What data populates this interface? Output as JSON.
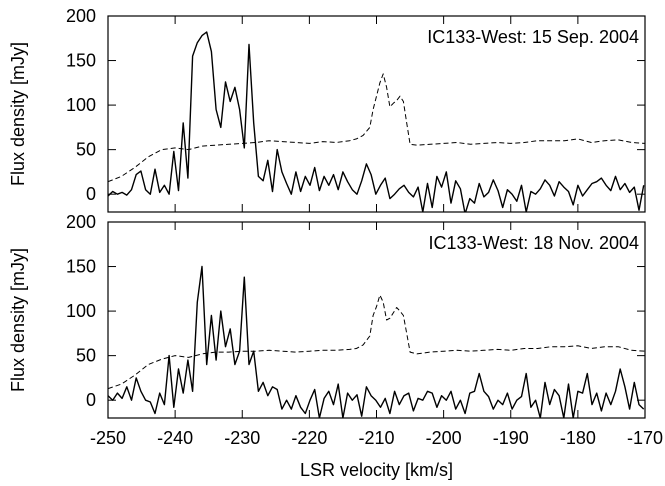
{
  "chart_data": [
    {
      "type": "line",
      "title": "IC133-West: 15 Sep. 2004",
      "ylabel": "Flux density [mJy]",
      "xlabel": "",
      "xlim": [
        -250,
        -170
      ],
      "ylim": [
        -20,
        200
      ],
      "yticks": [
        0,
        50,
        100,
        150,
        200
      ],
      "xticks": [
        -250,
        -240,
        -230,
        -220,
        -210,
        -200,
        -190,
        -180,
        -170
      ],
      "show_x_ticklabels": false,
      "grid": false,
      "series": [
        {
          "style": "solid",
          "x": [
            -250,
            -249.3,
            -248.6,
            -247.9,
            -247.2,
            -246.5,
            -245.8,
            -245.1,
            -244.4,
            -243.7,
            -243.0,
            -242.3,
            -241.6,
            -240.9,
            -240.2,
            -239.5,
            -238.8,
            -238.1,
            -237.4,
            -236.7,
            -236.0,
            -235.3,
            -234.6,
            -233.9,
            -233.2,
            -232.5,
            -231.8,
            -231.1,
            -230.4,
            -229.7,
            -229.0,
            -228.3,
            -227.6,
            -226.9,
            -226.2,
            -225.5,
            -224.8,
            -224.1,
            -223.4,
            -222.7,
            -222.0,
            -221.3,
            -220.6,
            -219.9,
            -219.2,
            -218.5,
            -217.8,
            -217.1,
            -216.4,
            -215.7,
            -215.0,
            -214.3,
            -213.6,
            -212.9,
            -212.2,
            -211.5,
            -210.8,
            -210.1,
            -209.4,
            -208.7,
            -208.0,
            -207.3,
            -206.6,
            -205.9,
            -205.2,
            -204.5,
            -203.8,
            -203.1,
            -202.4,
            -201.7,
            -201.0,
            -200.3,
            -199.6,
            -198.9,
            -198.2,
            -197.5,
            -196.8,
            -196.1,
            -195.4,
            -194.7,
            -194.0,
            -193.3,
            -192.6,
            -191.9,
            -191.2,
            -190.5,
            -189.8,
            -189.1,
            -188.4,
            -187.7,
            -187.0,
            -186.3,
            -185.6,
            -184.9,
            -184.2,
            -183.5,
            -182.8,
            -182.1,
            -181.4,
            -180.7,
            -180.0,
            -179.3,
            -178.6,
            -177.9,
            -177.2,
            -176.5,
            -175.8,
            -175.1,
            -174.4,
            -173.7,
            -173.0,
            -172.3,
            -171.6,
            -170.9,
            -170.2
          ],
          "y": [
            -2,
            3,
            0,
            2,
            -1,
            5,
            22,
            26,
            5,
            0,
            28,
            2,
            10,
            0,
            48,
            4,
            80,
            18,
            155,
            170,
            178,
            182,
            160,
            95,
            75,
            126,
            104,
            120,
            95,
            52,
            168,
            80,
            20,
            15,
            38,
            3,
            50,
            25,
            12,
            0,
            25,
            3,
            20,
            10,
            30,
            4,
            20,
            10,
            22,
            5,
            25,
            14,
            5,
            0,
            15,
            34,
            22,
            0,
            10,
            18,
            -5,
            0,
            6,
            10,
            2,
            -3,
            8,
            -20,
            12,
            -15,
            20,
            8,
            25,
            -10,
            15,
            6,
            -22,
            -5,
            -10,
            12,
            -3,
            2,
            16,
            4,
            -15,
            5,
            0,
            -8,
            10,
            -20,
            3,
            0,
            6,
            16,
            10,
            -2,
            14,
            8,
            3,
            -12,
            10,
            -2,
            5,
            12,
            14,
            18,
            10,
            4,
            20,
            5,
            12,
            2,
            8,
            -18,
            10
          ],
          "color": "#000000"
        },
        {
          "style": "dashed",
          "x": [
            -250,
            -248,
            -246,
            -244,
            -242,
            -240,
            -238,
            -236,
            -234,
            -232,
            -230,
            -228,
            -226,
            -224,
            -222,
            -220,
            -218,
            -216,
            -214,
            -213,
            -212,
            -211,
            -210.5,
            -210,
            -209.5,
            -209,
            -208.5,
            -208,
            -207.5,
            -207,
            -206.5,
            -206,
            -205.5,
            -205,
            -204,
            -202,
            -200,
            -198,
            -196,
            -194,
            -192,
            -190,
            -188,
            -186,
            -184,
            -182,
            -180,
            -178,
            -176,
            -174,
            -172,
            -170
          ],
          "y": [
            14,
            20,
            30,
            42,
            50,
            52,
            50,
            54,
            55,
            56,
            57,
            58,
            60,
            59,
            58,
            57,
            59,
            58,
            60,
            62,
            66,
            75,
            95,
            110,
            125,
            135,
            120,
            98,
            102,
            105,
            110,
            104,
            80,
            56,
            55,
            56,
            57,
            58,
            56,
            57,
            58,
            57,
            58,
            60,
            60,
            60,
            62,
            58,
            60,
            61,
            58,
            57
          ],
          "color": "#000000"
        }
      ]
    },
    {
      "type": "line",
      "title": "IC133-West: 18 Nov. 2004",
      "ylabel": "Flux density [mJy]",
      "xlabel": "LSR velocity [km/s]",
      "xlim": [
        -250,
        -170
      ],
      "ylim": [
        -20,
        200
      ],
      "yticks": [
        0,
        50,
        100,
        150,
        200
      ],
      "xticks": [
        -250,
        -240,
        -230,
        -220,
        -210,
        -200,
        -190,
        -180,
        -170
      ],
      "show_x_ticklabels": true,
      "grid": false,
      "series": [
        {
          "style": "solid",
          "x": [
            -250,
            -249.3,
            -248.6,
            -247.9,
            -247.2,
            -246.5,
            -245.8,
            -245.1,
            -244.4,
            -243.7,
            -243.0,
            -242.3,
            -241.6,
            -240.9,
            -240.2,
            -239.5,
            -238.8,
            -238.1,
            -237.4,
            -236.7,
            -236.0,
            -235.3,
            -234.6,
            -233.9,
            -233.2,
            -232.5,
            -231.8,
            -231.1,
            -230.4,
            -229.7,
            -229.0,
            -228.3,
            -227.6,
            -226.9,
            -226.2,
            -225.5,
            -224.8,
            -224.1,
            -223.4,
            -222.7,
            -222.0,
            -221.3,
            -220.6,
            -219.9,
            -219.2,
            -218.5,
            -217.8,
            -217.1,
            -216.4,
            -215.7,
            -215.0,
            -214.3,
            -213.6,
            -212.9,
            -212.2,
            -211.5,
            -210.8,
            -210.1,
            -209.4,
            -208.7,
            -208.0,
            -207.3,
            -206.6,
            -205.9,
            -205.2,
            -204.5,
            -203.8,
            -203.1,
            -202.4,
            -201.7,
            -201.0,
            -200.3,
            -199.6,
            -198.9,
            -198.2,
            -197.5,
            -196.8,
            -196.1,
            -195.4,
            -194.7,
            -194.0,
            -193.3,
            -192.6,
            -191.9,
            -191.2,
            -190.5,
            -189.8,
            -189.1,
            -188.4,
            -187.7,
            -187.0,
            -186.3,
            -185.6,
            -184.9,
            -184.2,
            -183.5,
            -182.8,
            -182.1,
            -181.4,
            -180.7,
            -180.0,
            -179.3,
            -178.6,
            -177.9,
            -177.2,
            -176.5,
            -175.8,
            -175.1,
            -174.4,
            -173.7,
            -173.0,
            -172.3,
            -171.6,
            -170.9,
            -170.2
          ],
          "y": [
            5,
            0,
            8,
            2,
            15,
            0,
            25,
            10,
            0,
            -2,
            -15,
            8,
            -5,
            50,
            -8,
            35,
            8,
            45,
            10,
            110,
            150,
            40,
            95,
            45,
            100,
            60,
            80,
            40,
            55,
            138,
            40,
            55,
            10,
            20,
            5,
            15,
            12,
            -10,
            0,
            -10,
            5,
            -8,
            -15,
            0,
            12,
            -20,
            2,
            10,
            -5,
            18,
            -20,
            8,
            0,
            6,
            -18,
            15,
            5,
            0,
            -8,
            2,
            -15,
            10,
            -5,
            5,
            8,
            -12,
            2,
            0,
            10,
            8,
            -8,
            5,
            0,
            10,
            -10,
            0,
            -15,
            8,
            10,
            30,
            10,
            4,
            -10,
            0,
            -5,
            8,
            -10,
            0,
            4,
            30,
            -8,
            0,
            -20,
            20,
            -5,
            12,
            5,
            -20,
            18,
            -20,
            10,
            8,
            30,
            -5,
            8,
            -12,
            8,
            -5,
            10,
            35,
            15,
            -10,
            20,
            -5,
            -10
          ],
          "color": "#000000"
        },
        {
          "style": "dashed",
          "x": [
            -250,
            -248,
            -246,
            -244,
            -242,
            -240,
            -238,
            -236,
            -234,
            -232,
            -230,
            -228,
            -226,
            -224,
            -222,
            -220,
            -218,
            -216,
            -214,
            -213,
            -212,
            -211,
            -210.5,
            -210,
            -209.5,
            -209,
            -208.5,
            -208,
            -207.5,
            -207,
            -206.5,
            -206,
            -205.5,
            -205,
            -204,
            -202,
            -200,
            -198,
            -196,
            -194,
            -192,
            -190,
            -188,
            -186,
            -184,
            -182,
            -180,
            -178,
            -176,
            -174,
            -172,
            -170
          ],
          "y": [
            13,
            18,
            28,
            40,
            46,
            50,
            48,
            52,
            54,
            54,
            55,
            55,
            56,
            55,
            54,
            55,
            56,
            56,
            57,
            58,
            62,
            72,
            95,
            105,
            118,
            110,
            90,
            92,
            98,
            104,
            100,
            95,
            75,
            54,
            52,
            54,
            55,
            56,
            55,
            56,
            57,
            56,
            58,
            58,
            60,
            60,
            61,
            58,
            60,
            60,
            56,
            55
          ],
          "color": "#000000"
        }
      ]
    }
  ]
}
